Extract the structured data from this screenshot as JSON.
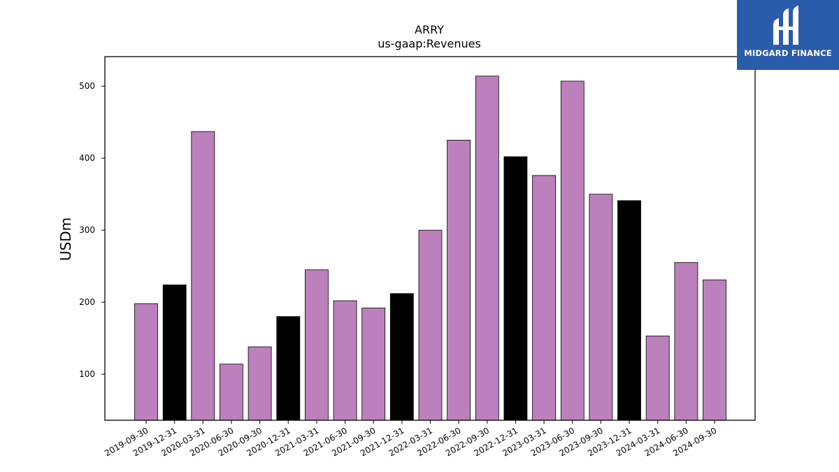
{
  "chart_data": {
    "type": "bar",
    "title": "ARRY",
    "subtitle": "us-gaap:Revenues",
    "xlabel": "",
    "ylabel": "USDm",
    "ylim": [
      36,
      541
    ],
    "yticks": [
      100,
      200,
      300,
      400,
      500
    ],
    "categories": [
      "2019-09-30",
      "2019-12-31",
      "2020-03-31",
      "2020-06-30",
      "2020-09-30",
      "2020-12-31",
      "2021-03-31",
      "2021-06-30",
      "2021-09-30",
      "2021-12-31",
      "2022-03-31",
      "2022-06-30",
      "2022-09-30",
      "2022-12-31",
      "2023-03-31",
      "2023-06-30",
      "2023-09-30",
      "2023-12-31",
      "2024-03-31",
      "2024-06-30",
      "2024-09-30"
    ],
    "values": [
      198,
      224,
      437,
      114,
      138,
      180,
      245,
      202,
      192,
      212,
      300,
      425,
      514,
      402,
      376,
      507,
      350,
      341,
      153,
      255,
      231
    ],
    "bar_colors": [
      "#bc80bd",
      "#000000",
      "#bc80bd",
      "#bc80bd",
      "#bc80bd",
      "#000000",
      "#bc80bd",
      "#bc80bd",
      "#bc80bd",
      "#000000",
      "#bc80bd",
      "#bc80bd",
      "#bc80bd",
      "#000000",
      "#bc80bd",
      "#bc80bd",
      "#bc80bd",
      "#000000",
      "#bc80bd",
      "#bc80bd",
      "#bc80bd"
    ],
    "grid": false,
    "legend": "none"
  },
  "logo": {
    "text": "MIDGARD FINANCE",
    "background": "#2b5bab",
    "icon": "midgard-logo-icon"
  }
}
